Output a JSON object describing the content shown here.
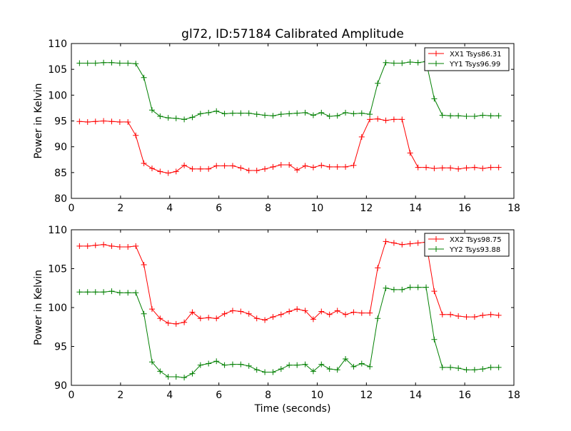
{
  "title": "gl72, ID:57184 Calibrated Amplitude",
  "colors": {
    "red": "#ff0000",
    "green": "#007f00"
  },
  "chart_data": [
    {
      "type": "line",
      "title": "gl72, ID:57184 Calibrated Amplitude",
      "xlabel": "",
      "ylabel": "Power in Kelvin",
      "xlim": [
        0,
        18
      ],
      "ylim": [
        80,
        110
      ],
      "x_ticks": [
        "0",
        "2",
        "4",
        "6",
        "8",
        "10",
        "12",
        "14",
        "16",
        "18"
      ],
      "y_ticks": [
        "80",
        "85",
        "90",
        "95",
        "100",
        "105",
        "110"
      ],
      "legend_position": "top-right",
      "grid": false,
      "x": [
        0.33,
        0.66,
        0.98,
        1.31,
        1.64,
        1.97,
        2.3,
        2.62,
        2.95,
        3.28,
        3.61,
        3.94,
        4.26,
        4.59,
        4.92,
        5.25,
        5.58,
        5.9,
        6.23,
        6.56,
        6.89,
        7.22,
        7.54,
        7.87,
        8.2,
        8.53,
        8.86,
        9.18,
        9.51,
        9.84,
        10.17,
        10.5,
        10.82,
        11.15,
        11.48,
        11.81,
        12.14,
        12.46,
        12.79,
        13.12,
        13.45,
        13.78,
        14.1,
        14.43,
        14.76,
        15.09,
        15.42,
        15.74,
        16.07,
        16.4,
        16.73,
        17.06,
        17.38
      ],
      "series": [
        {
          "name": "XX1 Tsys86.31",
          "color": "#ff0000",
          "values": [
            94.9,
            94.8,
            94.9,
            95.0,
            94.9,
            94.8,
            94.8,
            92.2,
            86.8,
            85.8,
            85.2,
            84.9,
            85.2,
            86.4,
            85.7,
            85.7,
            85.7,
            86.3,
            86.3,
            86.3,
            85.9,
            85.4,
            85.4,
            85.7,
            86.1,
            86.5,
            86.5,
            85.5,
            86.3,
            86.0,
            86.4,
            86.1,
            86.1,
            86.1,
            86.4,
            91.9,
            95.3,
            95.4,
            95.1,
            95.3,
            95.3,
            88.8,
            86.0,
            86.0,
            85.8,
            85.9,
            85.9,
            85.7,
            85.9,
            86.0,
            85.8,
            86.0,
            86.0
          ]
        },
        {
          "name": "YY1 Tsys96.99",
          "color": "#007f00",
          "values": [
            106.2,
            106.2,
            106.2,
            106.3,
            106.3,
            106.2,
            106.2,
            106.1,
            103.4,
            97.1,
            95.9,
            95.6,
            95.5,
            95.3,
            95.7,
            96.4,
            96.6,
            96.9,
            96.4,
            96.5,
            96.5,
            96.5,
            96.3,
            96.1,
            96.0,
            96.3,
            96.4,
            96.5,
            96.6,
            96.1,
            96.6,
            95.9,
            96.0,
            96.6,
            96.4,
            96.5,
            96.3,
            102.3,
            106.3,
            106.2,
            106.2,
            106.4,
            106.3,
            106.5,
            99.3,
            96.1,
            96.0,
            96.0,
            95.9,
            95.9,
            96.1,
            96.0,
            96.0
          ]
        }
      ]
    },
    {
      "type": "line",
      "title": "",
      "xlabel": "Time (seconds)",
      "ylabel": "Power in Kelvin",
      "xlim": [
        0,
        18
      ],
      "ylim": [
        90,
        110
      ],
      "x_ticks": [
        "0",
        "2",
        "4",
        "6",
        "8",
        "10",
        "12",
        "14",
        "16",
        "18"
      ],
      "y_ticks": [
        "90",
        "95",
        "100",
        "105",
        "110"
      ],
      "legend_position": "top-right",
      "grid": false,
      "x": [
        0.33,
        0.66,
        0.98,
        1.31,
        1.64,
        1.97,
        2.3,
        2.62,
        2.95,
        3.28,
        3.61,
        3.94,
        4.26,
        4.59,
        4.92,
        5.25,
        5.58,
        5.9,
        6.23,
        6.56,
        6.89,
        7.22,
        7.54,
        7.87,
        8.2,
        8.53,
        8.86,
        9.18,
        9.51,
        9.84,
        10.17,
        10.5,
        10.82,
        11.15,
        11.48,
        11.81,
        12.14,
        12.46,
        12.79,
        13.12,
        13.45,
        13.78,
        14.1,
        14.43,
        14.76,
        15.09,
        15.42,
        15.74,
        16.07,
        16.4,
        16.73,
        17.06,
        17.38
      ],
      "series": [
        {
          "name": "XX2 Tsys98.75",
          "color": "#ff0000",
          "values": [
            107.9,
            107.9,
            108.0,
            108.1,
            107.9,
            107.8,
            107.8,
            107.9,
            105.5,
            99.8,
            98.6,
            98.0,
            97.9,
            98.1,
            99.4,
            98.6,
            98.7,
            98.6,
            99.2,
            99.6,
            99.5,
            99.2,
            98.6,
            98.4,
            98.8,
            99.1,
            99.5,
            99.8,
            99.6,
            98.5,
            99.5,
            99.1,
            99.6,
            99.1,
            99.4,
            99.3,
            99.3,
            105.1,
            108.5,
            108.3,
            108.1,
            108.2,
            108.3,
            108.4,
            102.1,
            99.1,
            99.1,
            98.9,
            98.8,
            98.8,
            99.0,
            99.1,
            99.0
          ]
        },
        {
          "name": "YY2 Tsys93.88",
          "color": "#007f00",
          "values": [
            102.0,
            102.0,
            102.0,
            102.0,
            102.1,
            101.9,
            101.9,
            101.9,
            99.2,
            93.0,
            91.8,
            91.1,
            91.1,
            91.0,
            91.5,
            92.6,
            92.8,
            93.1,
            92.6,
            92.7,
            92.7,
            92.5,
            92.0,
            91.7,
            91.7,
            92.1,
            92.6,
            92.6,
            92.7,
            91.8,
            92.7,
            92.1,
            92.0,
            93.4,
            92.4,
            92.8,
            92.4,
            98.6,
            102.5,
            102.3,
            102.3,
            102.6,
            102.6,
            102.6,
            95.9,
            92.3,
            92.3,
            92.2,
            92.0,
            92.0,
            92.1,
            92.3,
            92.3
          ]
        }
      ]
    }
  ]
}
